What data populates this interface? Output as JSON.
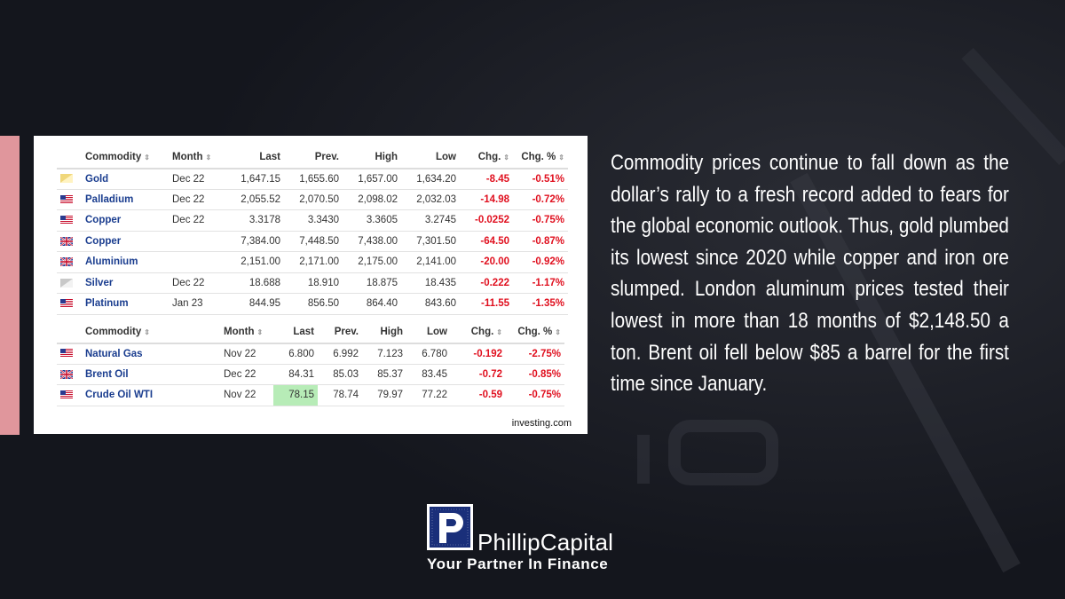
{
  "table1": {
    "headers": {
      "commodity": "Commodity",
      "month": "Month",
      "last": "Last",
      "prev": "Prev.",
      "high": "High",
      "low": "Low",
      "chg": "Chg.",
      "chg_pct": "Chg. %"
    },
    "rows": [
      {
        "flag": "gold-icon",
        "name": "Gold",
        "month": "Dec 22",
        "last": "1,647.15",
        "prev": "1,655.60",
        "high": "1,657.00",
        "low": "1,634.20",
        "chg": "-8.45",
        "chg_pct": "-0.51%"
      },
      {
        "flag": "us-flag-icon",
        "name": "Palladium",
        "month": "Dec 22",
        "last": "2,055.52",
        "prev": "2,070.50",
        "high": "2,098.02",
        "low": "2,032.03",
        "chg": "-14.98",
        "chg_pct": "-0.72%"
      },
      {
        "flag": "us-flag-icon",
        "name": "Copper",
        "month": "Dec 22",
        "last": "3.3178",
        "prev": "3.3430",
        "high": "3.3605",
        "low": "3.2745",
        "chg": "-0.0252",
        "chg_pct": "-0.75%"
      },
      {
        "flag": "uk-flag-icon",
        "name": "Copper",
        "month": "",
        "last": "7,384.00",
        "prev": "7,448.50",
        "high": "7,438.00",
        "low": "7,301.50",
        "chg": "-64.50",
        "chg_pct": "-0.87%"
      },
      {
        "flag": "uk-flag-icon",
        "name": "Aluminium",
        "month": "",
        "last": "2,151.00",
        "prev": "2,171.00",
        "high": "2,175.00",
        "low": "2,141.00",
        "chg": "-20.00",
        "chg_pct": "-0.92%"
      },
      {
        "flag": "silver-icon",
        "name": "Silver",
        "month": "Dec 22",
        "last": "18.688",
        "prev": "18.910",
        "high": "18.875",
        "low": "18.435",
        "chg": "-0.222",
        "chg_pct": "-1.17%"
      },
      {
        "flag": "us-flag-icon",
        "name": "Platinum",
        "month": "Jan 23",
        "last": "844.95",
        "prev": "856.50",
        "high": "864.40",
        "low": "843.60",
        "chg": "-11.55",
        "chg_pct": "-1.35%"
      }
    ]
  },
  "table2": {
    "headers": {
      "commodity": "Commodity",
      "month": "Month",
      "last": "Last",
      "prev": "Prev.",
      "high": "High",
      "low": "Low",
      "chg": "Chg.",
      "chg_pct": "Chg. %"
    },
    "rows": [
      {
        "flag": "us-flag-icon",
        "name": "Natural Gas",
        "month": "Nov 22",
        "last": "6.800",
        "prev": "6.992",
        "high": "7.123",
        "low": "6.780",
        "chg": "-0.192",
        "chg_pct": "-2.75%"
      },
      {
        "flag": "uk-flag-icon",
        "name": "Brent Oil",
        "month": "Dec 22",
        "last": "84.31",
        "prev": "85.03",
        "high": "85.37",
        "low": "83.45",
        "chg": "-0.72",
        "chg_pct": "-0.85%"
      },
      {
        "flag": "us-flag-icon",
        "name": "Crude Oil WTI",
        "month": "Nov 22",
        "last": "78.15",
        "prev": "78.74",
        "high": "79.97",
        "low": "77.22",
        "chg": "-0.59",
        "chg_pct": "-0.75%"
      }
    ]
  },
  "source_label": "investing.com",
  "body_text": "Commodity prices continue to fall down as the dollar’s rally to a fresh record added to fears for the global economic outlook. Thus, gold plumbed its lowest since 2020 while copper and iron ore slumped. London aluminum prices tested their lowest in more than 18 months of $2,148.50 a ton. Brent oil fell below $85 a barrel for the first time since January.",
  "logo": {
    "name": "PhillipCapital",
    "tagline": "Your Partner In Finance"
  },
  "colors": {
    "background": "#14161d",
    "accent_pink": "#e0969c",
    "negative_red": "#e0101f",
    "link_blue": "#1a3d8f",
    "logo_blue": "#1a2f7a",
    "highlight_green": "#b7ecb7"
  }
}
